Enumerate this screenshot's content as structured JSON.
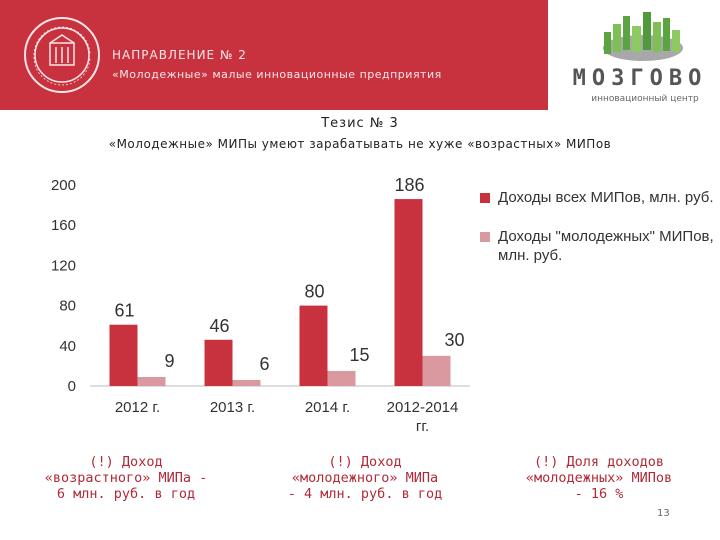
{
  "header": {
    "direction_line1": "НАПРАВЛЕНИЕ № 2",
    "direction_line2": "«Молодежные» малые инновационные предприятия",
    "brand_name": "МОЗГОВО",
    "brand_subtitle": "инновационный центр",
    "colors": {
      "banner": "#c8323f",
      "brand_green": "#5aa542",
      "brand_gray": "#8c8c8c"
    }
  },
  "thesis": {
    "title": "Тезис № 3",
    "text": "«Молодежные» МИПы умеют зарабатывать не хуже «возрастных» МИПов"
  },
  "chart_data": {
    "type": "bar",
    "categories": [
      "2012 г.",
      "2013 г.",
      "2014 г.",
      "2012-2014 гг."
    ],
    "series": [
      {
        "name": "Доходы всех МИПов, млн. руб.",
        "values": [
          61,
          46,
          80,
          186
        ],
        "color": "#c8323f"
      },
      {
        "name": "Доходы \"молодежных\" МИПов, млн. руб.",
        "values": [
          9,
          6,
          15,
          30
        ],
        "color": "#d9999e"
      }
    ],
    "yticks": [
      0,
      40,
      80,
      120,
      160,
      200
    ],
    "ylim": [
      0,
      200
    ],
    "grid": false,
    "legend": "right"
  },
  "notes": [
    {
      "lines": [
        "(!) Доход",
        "«возрастного» МИПа -",
        "6 млн. руб. в год"
      ]
    },
    {
      "lines": [
        "(!) Доход",
        "«молодежного» МИПа",
        "- 4 млн. руб. в год"
      ]
    },
    {
      "lines": [
        "(!) Доля доходов",
        "«молодежных» МИПов",
        "- 16 %"
      ]
    }
  ],
  "page_number": "13"
}
